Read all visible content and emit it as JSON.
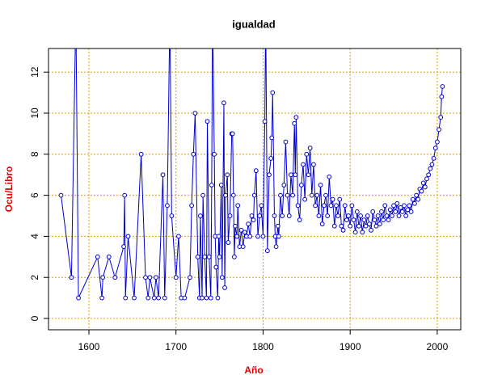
{
  "chart_data": {
    "type": "line",
    "title": "igualdad",
    "xlabel": "Año",
    "ylabel": "Ocu/Libro",
    "xlim": [
      1553.6,
      2027
    ],
    "ylim": [
      -0.55,
      13.15
    ],
    "xticks": [
      1600,
      1700,
      1800,
      1900,
      2000
    ],
    "yticks": [
      0,
      2,
      4,
      6,
      8,
      10,
      12
    ],
    "grid": true,
    "series": [
      {
        "color": "#0000cc",
        "x": [
          1568,
          1580,
          1585,
          1588,
          1610,
          1615,
          1616,
          1623,
          1630,
          1640,
          1641,
          1642,
          1645,
          1652,
          1660,
          1665,
          1668,
          1670,
          1675,
          1677,
          1680,
          1685,
          1687,
          1690,
          1693,
          1695,
          1700,
          1703,
          1706,
          1710,
          1716,
          1718,
          1720,
          1722,
          1725,
          1727,
          1728,
          1730,
          1731,
          1733,
          1735,
          1736,
          1738,
          1740,
          1741,
          1742,
          1744,
          1745,
          1746,
          1748,
          1749,
          1750,
          1752,
          1753,
          1755,
          1756,
          1757,
          1759,
          1760,
          1762,
          1764,
          1765,
          1766,
          1767,
          1768,
          1770,
          1771,
          1773,
          1775,
          1777,
          1779,
          1781,
          1783,
          1785,
          1787,
          1789,
          1790,
          1792,
          1794,
          1796,
          1798,
          1800,
          1802,
          1803,
          1805,
          1807,
          1809,
          1810,
          1811,
          1813,
          1814,
          1815,
          1817,
          1818,
          1820,
          1822,
          1824,
          1826,
          1828,
          1830,
          1832,
          1834,
          1836,
          1837,
          1838,
          1840,
          1842,
          1844,
          1846,
          1848,
          1850,
          1852,
          1854,
          1856,
          1858,
          1860,
          1862,
          1864,
          1866,
          1868,
          1870,
          1872,
          1874,
          1876,
          1878,
          1880,
          1882,
          1884,
          1886,
          1888,
          1890,
          1892,
          1894,
          1896,
          1898,
          1900,
          1902,
          1904,
          1906,
          1908,
          1910,
          1912,
          1914,
          1916,
          1918,
          1920,
          1922,
          1924,
          1926,
          1928,
          1930,
          1932,
          1934,
          1936,
          1938,
          1940,
          1942,
          1944,
          1946,
          1948,
          1950,
          1952,
          1954,
          1956,
          1958,
          1960,
          1962,
          1964,
          1966,
          1968,
          1970,
          1972,
          1974,
          1976,
          1978,
          1980,
          1982,
          1984,
          1986,
          1988,
          1990,
          1992,
          1994,
          1996,
          1998,
          2000,
          2002,
          2004,
          2005,
          2006
        ],
        "values": [
          6,
          2,
          15,
          1,
          3,
          1,
          2,
          3,
          2,
          3.5,
          6,
          1,
          4,
          1,
          8,
          2,
          1,
          2,
          1,
          2,
          1,
          7,
          1,
          5.5,
          15,
          5,
          2,
          4,
          1,
          1,
          2,
          5.5,
          8,
          10,
          3,
          1,
          5,
          1,
          6,
          3,
          1,
          9.6,
          3,
          1,
          6.5,
          15,
          8,
          4,
          2.5,
          1,
          4,
          3,
          6.5,
          2,
          10.5,
          1.5,
          6,
          7,
          3.7,
          5,
          9,
          9,
          6,
          3,
          4.5,
          4,
          5.5,
          3.5,
          4.3,
          3.5,
          4.2,
          4,
          4.6,
          4,
          5,
          4.8,
          6,
          7.2,
          4,
          5,
          5.5,
          4,
          9.6,
          15,
          3.3,
          7,
          7.8,
          8.8,
          11,
          5,
          4,
          3.5,
          4.5,
          4,
          6,
          5,
          6.5,
          8.6,
          6,
          5,
          7,
          6,
          9.5,
          7,
          9.8,
          5.5,
          4.8,
          6.5,
          7.5,
          5.8,
          8,
          7,
          8.3,
          6,
          7.5,
          5.5,
          6,
          5,
          6.5,
          4.6,
          5.5,
          6,
          5,
          6.9,
          5.5,
          5.8,
          4.5,
          5.5,
          5,
          5.8,
          4.5,
          4.3,
          5.5,
          4.8,
          5,
          4.5,
          5.5,
          4.8,
          4.2,
          5.2,
          4.5,
          5,
          4.2,
          4.8,
          4.5,
          5,
          4.6,
          4.3,
          5.2,
          4.8,
          4.5,
          5,
          4.6,
          5.2,
          4.8,
          5.5,
          5,
          4.8,
          5.3,
          5,
          5.5,
          5.2,
          5.6,
          5,
          5.4,
          5.2,
          5.5,
          5,
          5.3,
          5.5,
          5.2,
          5.8,
          5.6,
          6,
          5.8,
          6.3,
          6.2,
          6.6,
          6.4,
          6.8,
          7,
          7.3,
          7.5,
          7.8,
          8.3,
          8.6,
          9.2,
          9.8,
          10.8,
          11.3
        ]
      }
    ]
  }
}
